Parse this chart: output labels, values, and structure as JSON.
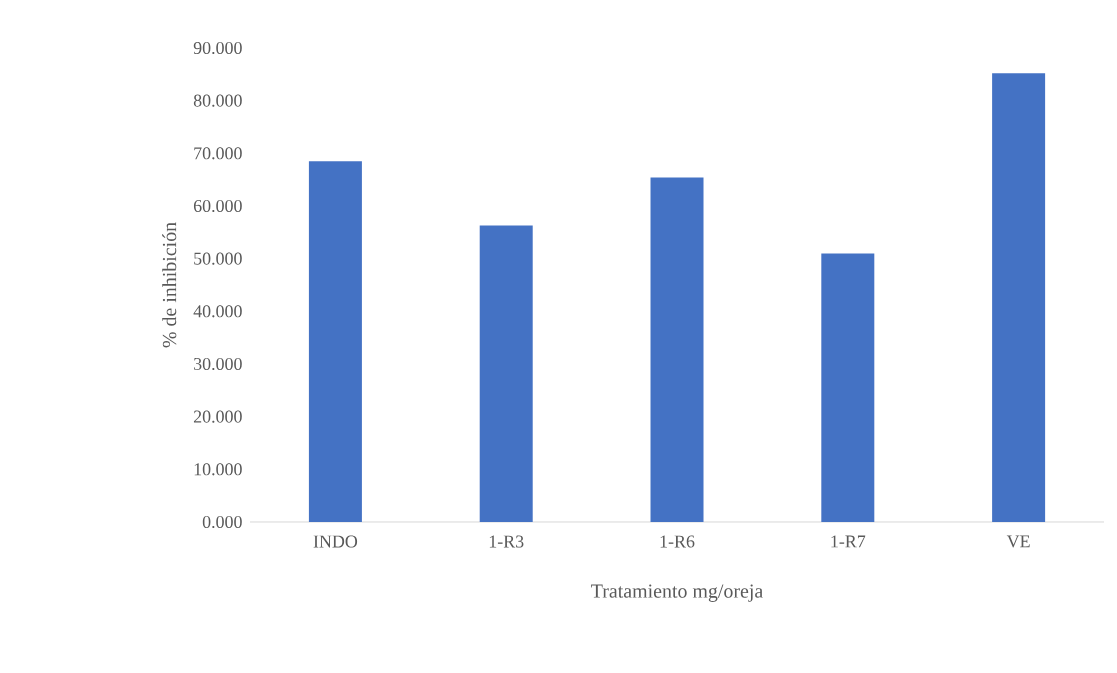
{
  "chart_data": {
    "type": "bar",
    "xlabel": "Tratamiento mg/oreja",
    "ylabel": "% de inhibición",
    "categories": [
      "INDO",
      "1-R3",
      "1-R6",
      "1-R7",
      "VE"
    ],
    "values": [
      68.5,
      56.3,
      65.4,
      51.0,
      85.2
    ],
    "color": "#4472c4",
    "ylim": [
      0,
      90
    ],
    "yticks": [
      {
        "value": 0,
        "label": "0.000"
      },
      {
        "value": 10,
        "label": "10.000"
      },
      {
        "value": 20,
        "label": "20.000"
      },
      {
        "value": 30,
        "label": "30.000"
      },
      {
        "value": 40,
        "label": "40.000"
      },
      {
        "value": 50,
        "label": "50.000"
      },
      {
        "value": 60,
        "label": "60.000"
      },
      {
        "value": 70,
        "label": "70.000"
      },
      {
        "value": 80,
        "label": "80.000"
      },
      {
        "value": 90,
        "label": "90.000"
      }
    ]
  }
}
